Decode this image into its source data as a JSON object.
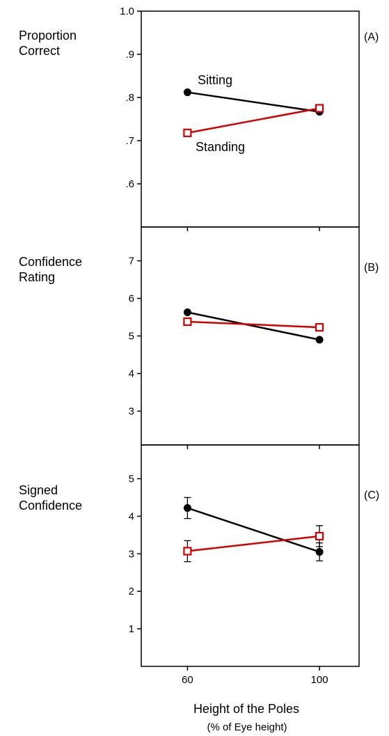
{
  "colors": {
    "sitting": "#000000",
    "standing": "#d40000",
    "frame": "#000000"
  },
  "xaxis": {
    "label": "Height of the Poles",
    "sublabel": "(% of Eye height)",
    "ticks": [
      "60",
      "100"
    ],
    "values": [
      60,
      100
    ],
    "range": [
      46,
      112
    ]
  },
  "chart_data": [
    {
      "type": "line",
      "panel_letter": "(A)",
      "ylabel": [
        "Proportion",
        "Correct"
      ],
      "ylim": [
        0.5,
        1.0
      ],
      "yticks": [
        0.6,
        0.7,
        0.8,
        0.9,
        1.0
      ],
      "ytick_labels": [
        ".6",
        ".7",
        ".8",
        ".9",
        "1.0"
      ],
      "x": [
        60,
        100
      ],
      "series": [
        {
          "key": "sitting",
          "values": [
            0.812,
            0.767
          ],
          "label": "Sitting",
          "marker": "filled-circle"
        },
        {
          "key": "standing",
          "values": [
            0.718,
            0.775
          ],
          "label": "Standing",
          "marker": "open-square"
        }
      ]
    },
    {
      "type": "line",
      "panel_letter": "(B)",
      "ylabel": [
        "Confidence",
        "Rating"
      ],
      "ylim": [
        2.1,
        7.9
      ],
      "yticks": [
        3,
        4,
        5,
        6,
        7
      ],
      "ytick_labels": [
        "3",
        "4",
        "5",
        "6",
        "7"
      ],
      "x": [
        60,
        100
      ],
      "series": [
        {
          "key": "sitting",
          "values": [
            5.63,
            4.9
          ],
          "marker": "filled-circle"
        },
        {
          "key": "standing",
          "values": [
            5.38,
            5.23
          ],
          "marker": "open-square"
        }
      ]
    },
    {
      "type": "line",
      "panel_letter": "(C)",
      "ylabel": [
        "Signed",
        "Confidence"
      ],
      "ylim": [
        0.0,
        5.9
      ],
      "yticks": [
        1,
        2,
        3,
        4,
        5
      ],
      "ytick_labels": [
        "1",
        "2",
        "3",
        "4",
        "5"
      ],
      "x": [
        60,
        100
      ],
      "series": [
        {
          "key": "sitting",
          "values": [
            4.22,
            3.05
          ],
          "errors": [
            0.28,
            0.24
          ],
          "marker": "filled-circle"
        },
        {
          "key": "standing",
          "values": [
            3.07,
            3.47
          ],
          "errors": [
            0.28,
            0.28
          ],
          "marker": "open-square"
        }
      ]
    }
  ]
}
